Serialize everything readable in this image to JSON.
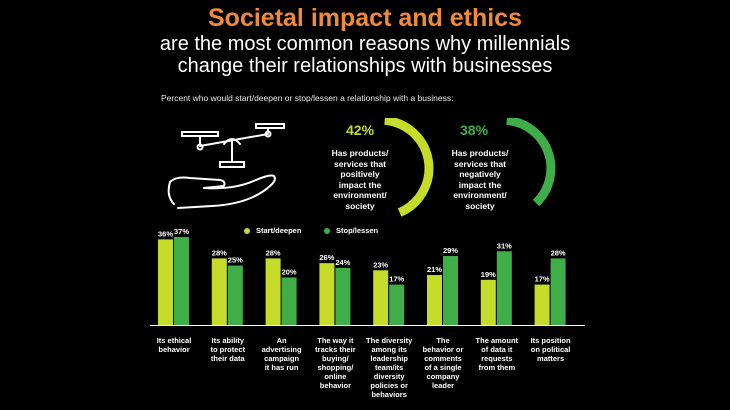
{
  "header": {
    "title": "Societal impact and ethics",
    "subtitle_line1": "are the most common reasons why millennials",
    "subtitle_line2": "change their relationships with businesses"
  },
  "lead_text": "Percent who would start/deepen or stop/lessen a relationship with a business:",
  "colors": {
    "start": "#c5dc2a",
    "stop": "#3fae49",
    "title": "#ee8a3a"
  },
  "icons": [
    "scales-icon",
    "open-hand-icon"
  ],
  "stats": [
    {
      "percent": "42%",
      "value": 42,
      "lines": [
        "Has products/",
        "services that",
        "positively",
        "impact the",
        "environment/",
        "society"
      ]
    },
    {
      "percent": "38%",
      "value": 38,
      "lines": [
        "Has products/",
        "services that",
        "negatively",
        "impact the",
        "environment/",
        "society"
      ]
    }
  ],
  "chart_data": {
    "type": "bar",
    "categories": [
      [
        "Its ethical",
        "behavior"
      ],
      [
        "Its ability",
        "to protect",
        "their data"
      ],
      [
        "An",
        "advertising",
        "campaign",
        "it has run"
      ],
      [
        "The way it",
        "tracks their",
        "buying/",
        "shopping/",
        "online",
        "behavior"
      ],
      [
        "The diversity",
        "among its",
        "leadership",
        "team/its",
        "diversity",
        "policies or",
        "behaviors"
      ],
      [
        "The",
        "behavior or",
        "comments",
        "of a single",
        "company",
        "leader"
      ],
      [
        "The amount",
        "of data it",
        "requests",
        "from them"
      ],
      [
        "Its position",
        "on political",
        "matters"
      ]
    ],
    "series": [
      {
        "name": "Start/deepen",
        "values": [
          36,
          28,
          28,
          26,
          23,
          21,
          19,
          17
        ],
        "labels": [
          "36%",
          "28%",
          "28%",
          "26%",
          "23%",
          "21%",
          "19%",
          "17%"
        ]
      },
      {
        "name": "Stop/lessen",
        "values": [
          37,
          25,
          20,
          24,
          17,
          29,
          31,
          28
        ],
        "labels": [
          "37%",
          "25%",
          "20%",
          "24%",
          "17%",
          "29%",
          "31%",
          "28%"
        ]
      }
    ],
    "title": "",
    "xlabel": "",
    "ylabel": "",
    "ylim": [
      0,
      37
    ],
    "grid": false,
    "legend": "top-left"
  }
}
